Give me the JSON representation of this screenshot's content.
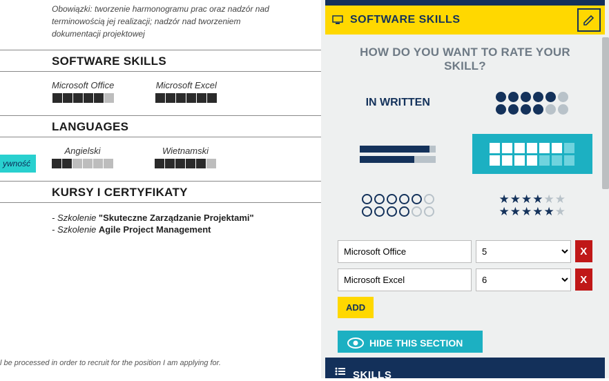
{
  "left": {
    "responsibilities": "Obowiązki: tworzenie harmonogramu prac oraz nadzór nad terminowością jej realizacji; nadzór nad tworzeniem dokumentacji projektowej",
    "sections": {
      "software": "SOFTWARE SKILLS",
      "languages": "LANGUAGES",
      "courses": "KURSY I CERTYFIKATY"
    },
    "software": [
      {
        "name": "Microsoft Office",
        "level": 5,
        "max": 6
      },
      {
        "name": "Microsoft Excel",
        "level": 6,
        "max": 6
      }
    ],
    "languages": [
      {
        "name": "Angielski",
        "level": 2,
        "max": 6
      },
      {
        "name": "Wietnamski",
        "level": 5,
        "max": 6
      }
    ],
    "courses": [
      {
        "prefix": "- Szkolenie ",
        "bold": "\"Skuteczne Zarządzanie Projektami\""
      },
      {
        "prefix": "- Szkolenie ",
        "bold": "Agile Project Management"
      }
    ],
    "footer": "l be processed in order to recruit for the position I am applying for.",
    "side_tag": "ywność"
  },
  "right": {
    "header_title": "SOFTWARE SKILLS",
    "question": "HOW DO YOU WANT TO RATE YOUR SKILL?",
    "written_label": "IN WRITTEN",
    "selected_style": "boxes",
    "skills": [
      {
        "name": "Microsoft Office",
        "level": "5"
      },
      {
        "name": "Microsoft Excel",
        "level": "6"
      }
    ],
    "add_label": "ADD",
    "delete_label": "X",
    "hide_label": "HIDE THIS SECTION",
    "footer_title": "SKILLS",
    "colors": {
      "yellow": "#ffd800",
      "navy": "#14325b",
      "teal": "#1cb0c2",
      "red": "#c01818",
      "grey": "#b8c2c9"
    }
  }
}
